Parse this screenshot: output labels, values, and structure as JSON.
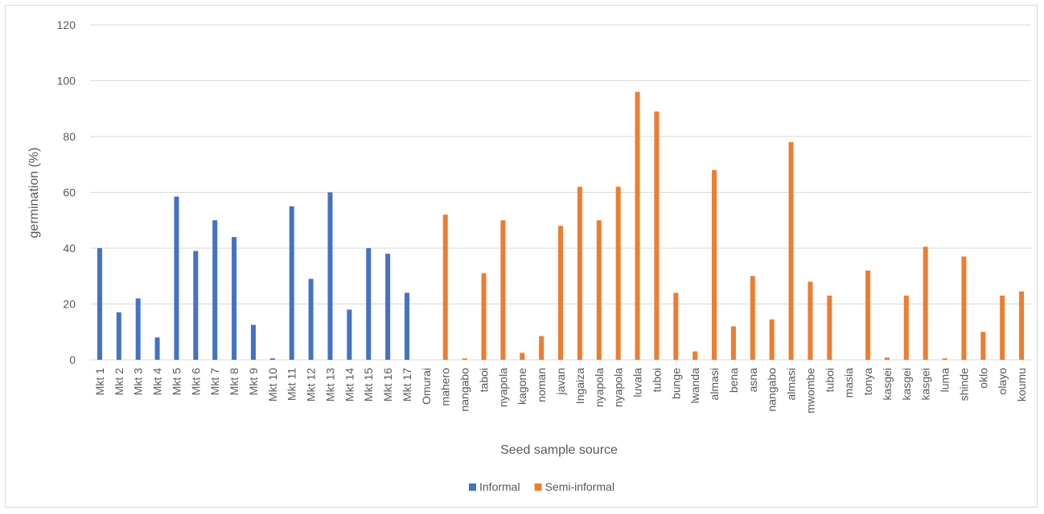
{
  "chart_data": {
    "type": "bar",
    "title": "",
    "xlabel": "Seed sample source",
    "ylabel": "germination (%)",
    "ylim": [
      0,
      120
    ],
    "yticks": [
      0,
      20,
      40,
      60,
      80,
      100,
      120
    ],
    "grid": true,
    "legend_position": "bottom",
    "categories": [
      "Mkt 1",
      "Mkt 2",
      "Mkt 3",
      "Mkt 4",
      "Mkt 5",
      "Mkt 6",
      "Mkt 7",
      "Mkt 8",
      "Mkt 9",
      "Mkt 10",
      "Mkt 11",
      "Mkt 12",
      "Mkt 13",
      "Mkt 14",
      "Mkt 15",
      "Mkt 16",
      "Mkt 17",
      "Omurai",
      "mahero",
      "nangabo",
      "taboi",
      "nyapola",
      "kagone",
      "noman",
      "javan",
      "Ingaiza",
      "nyapola",
      "nyapola",
      "luvala",
      "tuboi",
      "bunge",
      "lwanda",
      "almasi",
      "bena",
      "asna",
      "nangabo",
      "almasi",
      "mwombe",
      "tuboi",
      "masia",
      "tonya",
      "kasgei",
      "kasgei",
      "kasgei",
      "luma",
      "shinde",
      "oklo",
      "olayo",
      "koumu"
    ],
    "series": [
      {
        "name": "Informal",
        "color": "#4472c4",
        "values": [
          40,
          17,
          22,
          8,
          58.5,
          39,
          50,
          44,
          12.5,
          0.5,
          55,
          29,
          60,
          18,
          40,
          38,
          24,
          null,
          null,
          null,
          null,
          null,
          null,
          null,
          null,
          null,
          null,
          null,
          null,
          null,
          null,
          null,
          null,
          null,
          null,
          null,
          null,
          null,
          null,
          null,
          null,
          null,
          null,
          null,
          null,
          null,
          null,
          null,
          null
        ]
      },
      {
        "name": "Semi-informal",
        "color": "#ed7d31",
        "values": [
          null,
          null,
          null,
          null,
          null,
          null,
          null,
          null,
          null,
          null,
          null,
          null,
          null,
          null,
          null,
          null,
          null,
          0,
          52,
          0.5,
          31,
          50,
          2.5,
          8.5,
          48,
          62,
          50,
          62,
          96,
          89,
          24,
          3,
          68,
          12,
          30,
          14.5,
          78,
          28,
          23,
          0,
          32,
          0.8,
          23,
          40.5,
          0.5,
          37,
          10,
          23,
          24.5
        ]
      }
    ]
  }
}
